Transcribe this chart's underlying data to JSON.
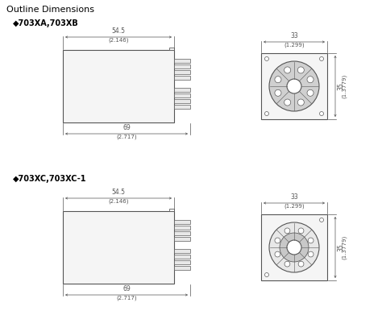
{
  "title": "Outline Dimensions",
  "model1": "◆703XA,703XB",
  "model2": "◆703XC,703XC-1",
  "bg_color": "#ffffff",
  "line_color": "#555555",
  "dim_color": "#555555",
  "text_color": "#000000",
  "body_fill": "#f5f5f5",
  "ring_fill_A": "#d0d0d0",
  "ring_fill_C": "#e8e8e8",
  "inner_ring_fill_C": "#c8c8c8",
  "pin_fill": "#e8e8e8"
}
